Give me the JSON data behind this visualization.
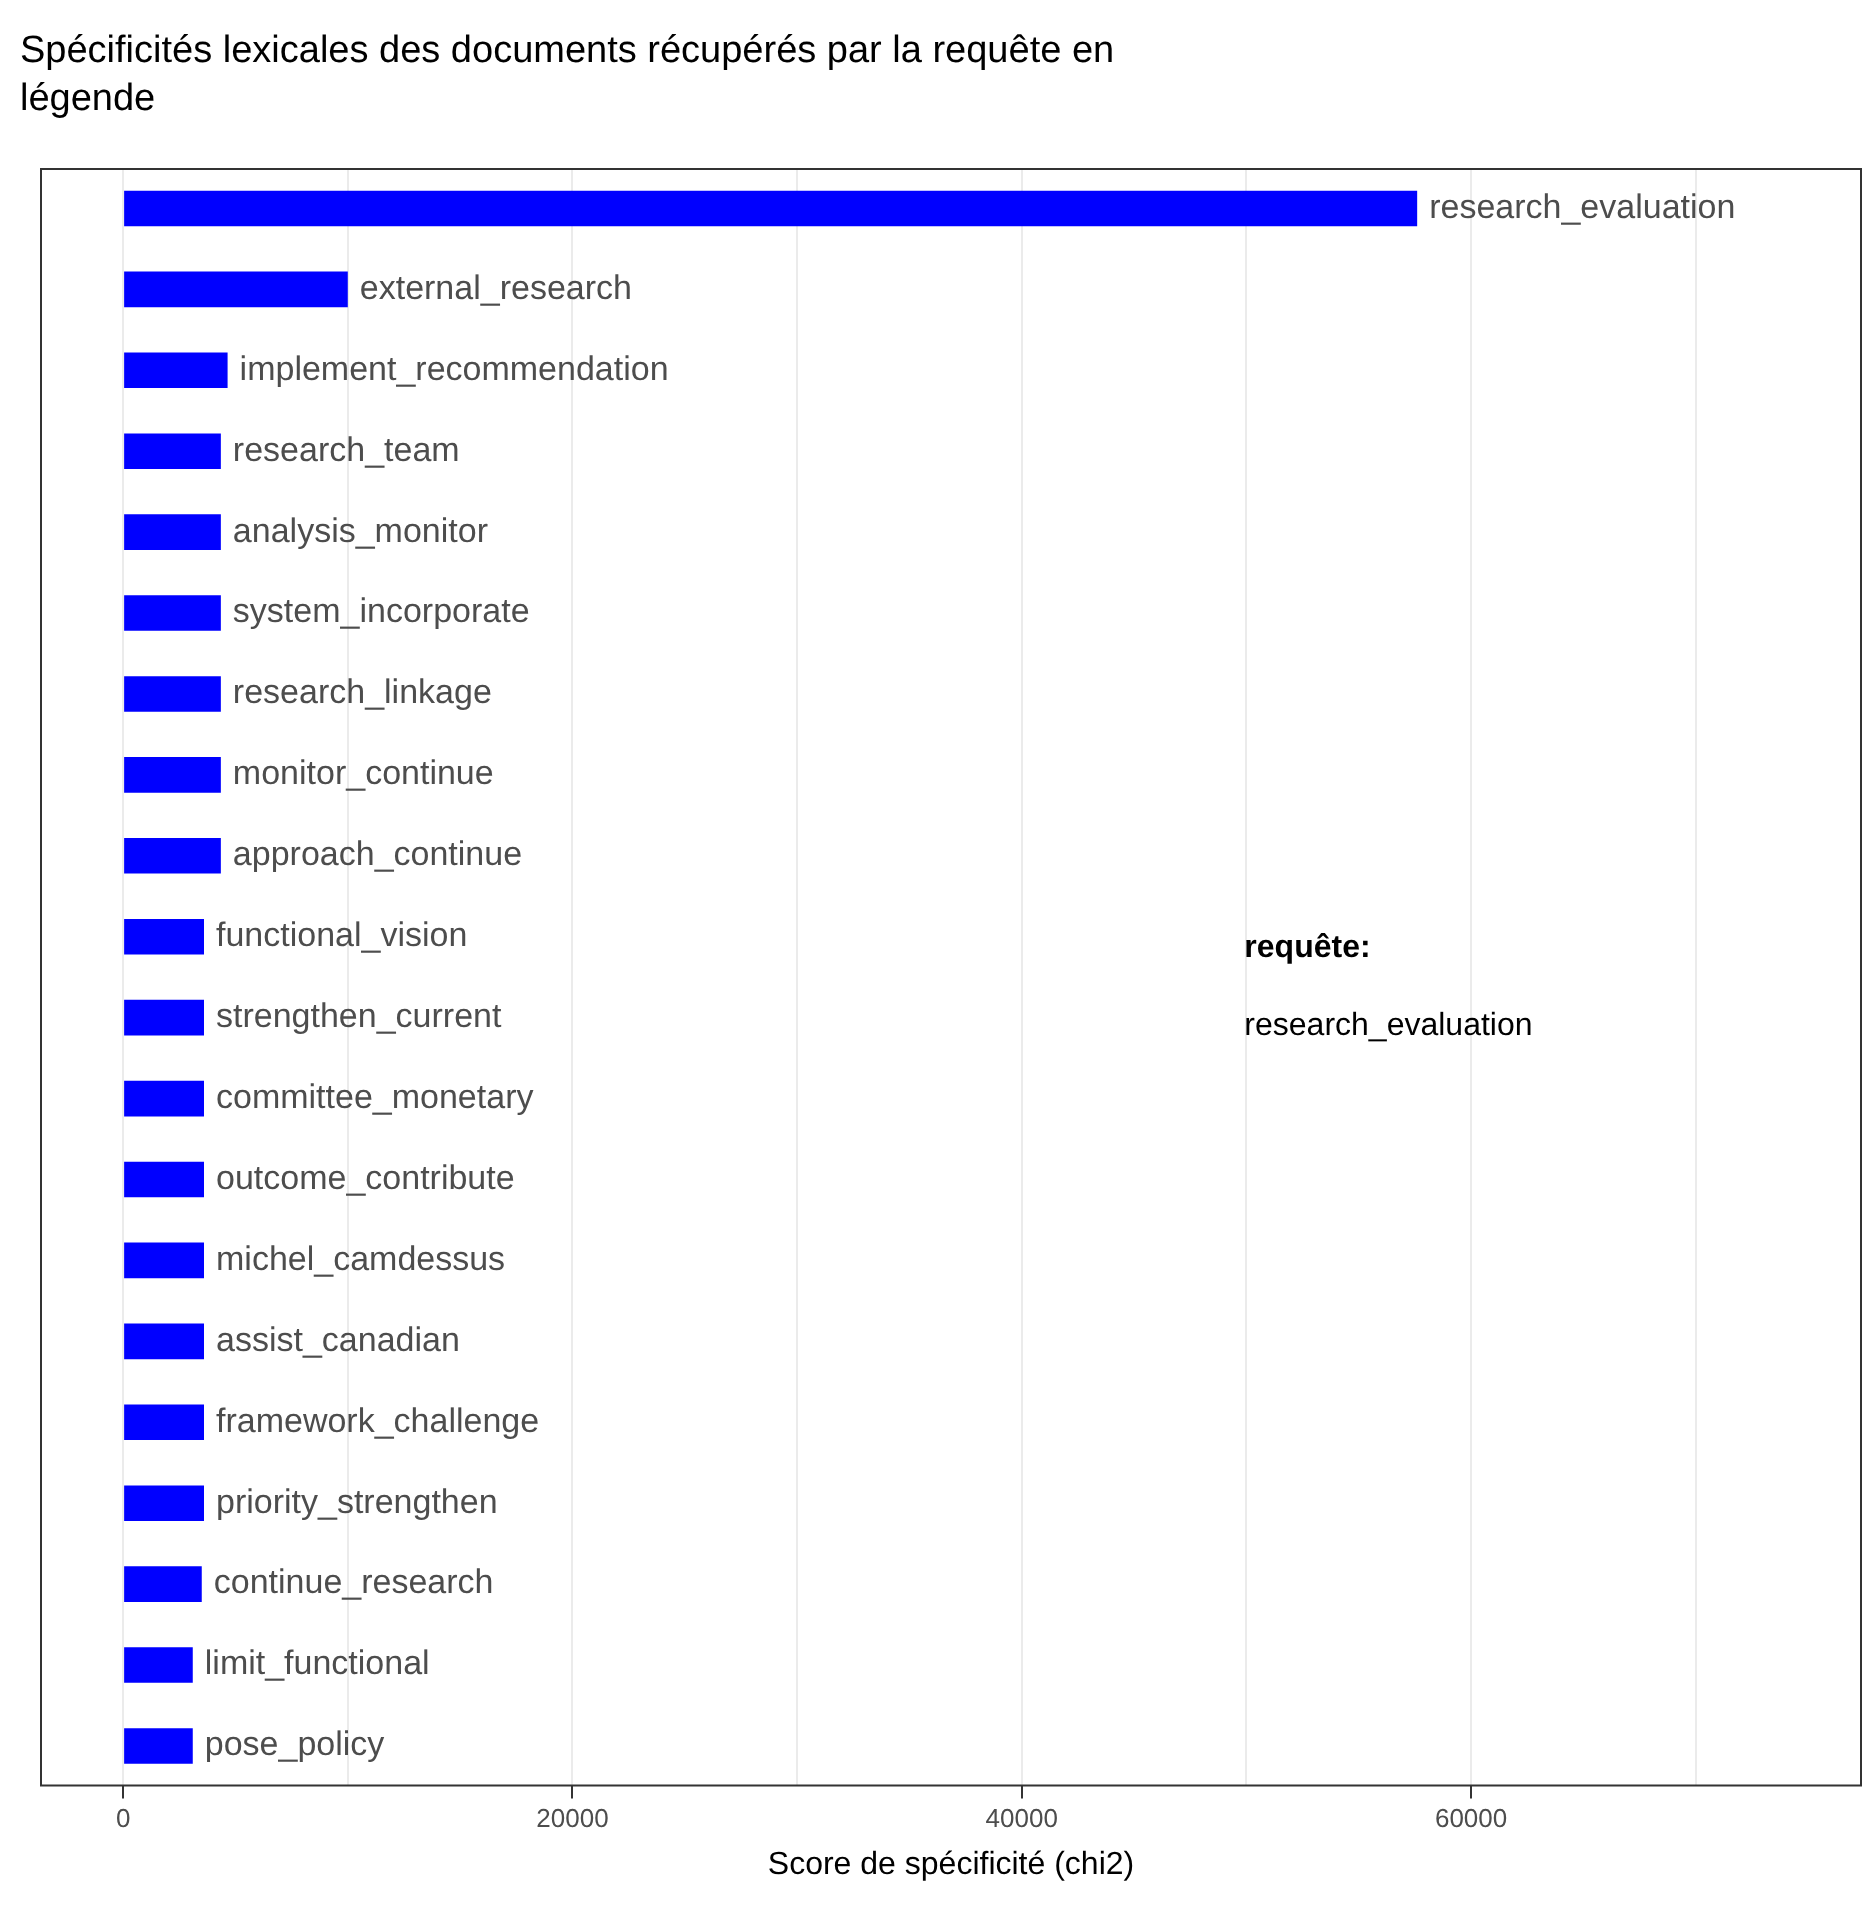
{
  "chart_data": {
    "type": "bar",
    "orientation": "horizontal",
    "title": "Spécificités lexicales des documents récupérés par la requête en légende",
    "xlabel": "Score de spécificité (chi2)",
    "categories": [
      "research_evaluation",
      "external_research",
      "implement_recommendation",
      "research_team",
      "analysis_monitor",
      "system_incorporate",
      "research_linkage",
      "monitor_continue",
      "approach_continue",
      "functional_vision",
      "strengthen_current",
      "committee_monetary",
      "outcome_contribute",
      "michel_camdessus",
      "assist_canadian",
      "framework_challenge",
      "priority_strengthen",
      "continue_research",
      "limit_functional",
      "pose_policy"
    ],
    "values": [
      57600,
      10000,
      4650,
      4350,
      4350,
      4350,
      4350,
      4350,
      4350,
      3600,
      3600,
      3600,
      3600,
      3600,
      3600,
      3600,
      3600,
      3500,
      3100,
      3100
    ],
    "color": "#0000ff",
    "xlim": [
      -3700,
      77400
    ],
    "xticks": [
      0,
      {
        "value": 10000,
        "label": null
      },
      20000,
      {
        "value": 30000,
        "label": null
      },
      40000,
      {
        "value": 50000,
        "label": null
      },
      60000,
      {
        "value": 70000,
        "label": null
      }
    ],
    "grid": "x",
    "tick_labels": "x",
    "legend": false,
    "annotations": [
      "requête:",
      "research_evaluation"
    ]
  }
}
